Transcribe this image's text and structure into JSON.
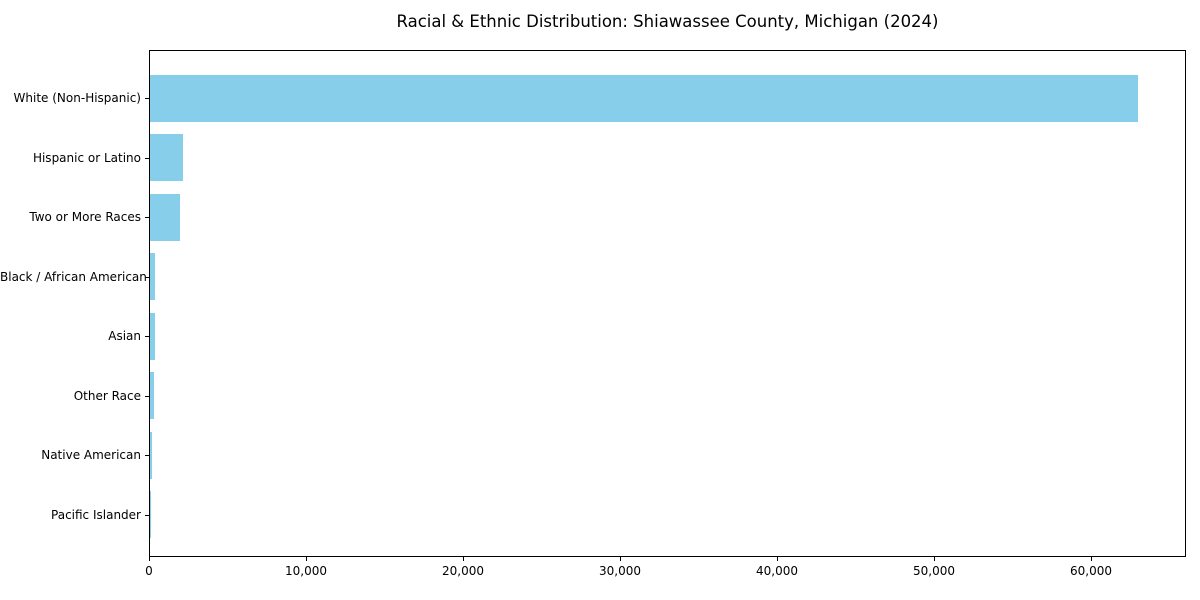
{
  "title": "Racial & Ethnic Distribution: Shiawassee County, Michigan (2024)",
  "colors": {
    "bar": "#87CEEB",
    "axis": "#000000",
    "background": "#ffffff",
    "text": "#000000"
  },
  "chart_data": {
    "type": "bar",
    "orientation": "horizontal",
    "title": "Racial & Ethnic Distribution: Shiawassee County, Michigan (2024)",
    "xlabel": "",
    "ylabel": "",
    "categories": [
      "White (Non-Hispanic)",
      "Hispanic or Latino",
      "Two or More Races",
      "Black / African American",
      "Asian",
      "Other Race",
      "Native American",
      "Pacific Islander"
    ],
    "values": [
      62900,
      2100,
      1900,
      300,
      290,
      250,
      100,
      20
    ],
    "bar_color": "#87CEEB",
    "xlim": [
      0,
      66050
    ],
    "xticks": [
      0,
      10000,
      20000,
      30000,
      40000,
      50000,
      60000
    ],
    "xtick_labels": [
      "0",
      "10,000",
      "20,000",
      "30,000",
      "40,000",
      "50,000",
      "60,000"
    ],
    "grid": false,
    "legend": null
  }
}
